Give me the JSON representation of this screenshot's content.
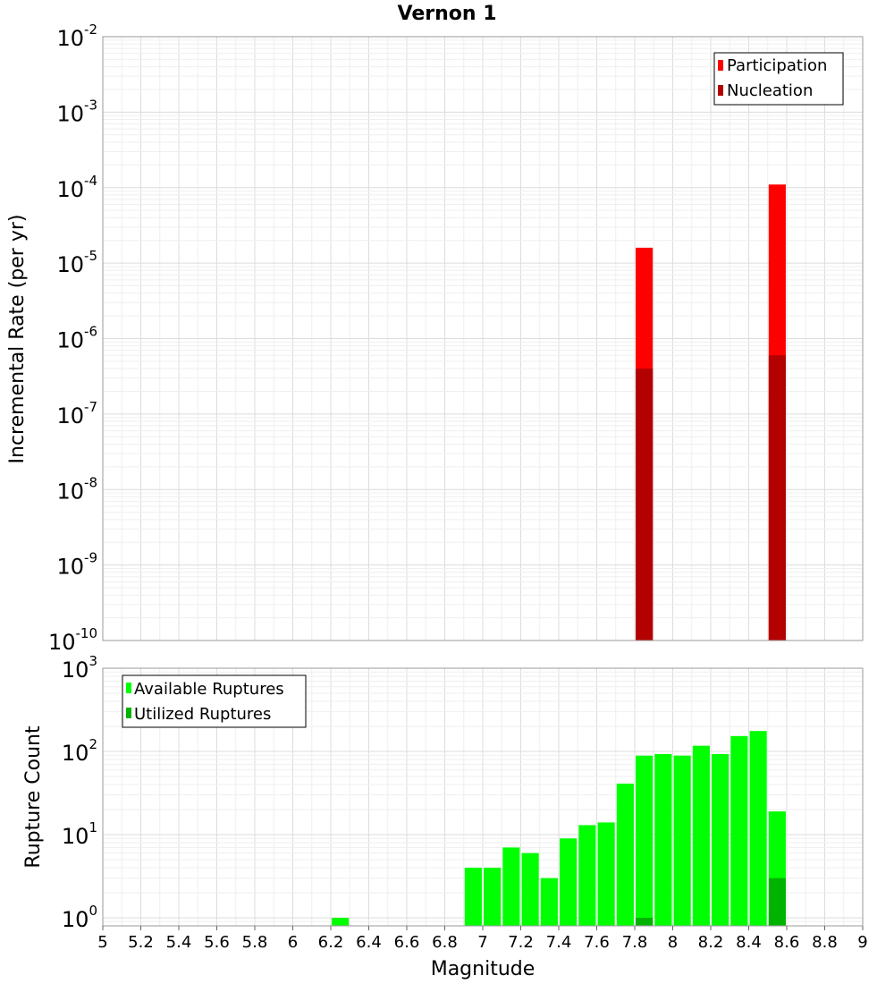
{
  "chart_data": [
    {
      "type": "bar",
      "title": "Vernon 1",
      "ylabel": "Incremental Rate (per yr)",
      "xlabel": "",
      "xlim": [
        5,
        9
      ],
      "ylim": [
        1e-10,
        0.01
      ],
      "yscale": "log",
      "y_tick_exponents": [
        "-2",
        "-3",
        "-4",
        "-5",
        "-6",
        "-7",
        "-8",
        "-9",
        "-10"
      ],
      "grid": true,
      "legend_position": "top-right",
      "series": [
        {
          "name": "Participation",
          "color": "#ff0000",
          "x": [
            7.85,
            8.55
          ],
          "values": [
            1.6e-05,
            0.00011
          ]
        },
        {
          "name": "Nucleation",
          "color": "#b30000",
          "x": [
            7.85,
            8.55
          ],
          "values": [
            4e-07,
            6e-07
          ]
        }
      ]
    },
    {
      "type": "bar",
      "title": "",
      "ylabel": "Rupture Count",
      "xlabel": "Magnitude",
      "xlim": [
        5,
        9
      ],
      "ylim": [
        0.8,
        1000
      ],
      "yscale": "log",
      "y_tick_exponents": [
        "3",
        "2",
        "1",
        "0"
      ],
      "x_ticks": [
        "5",
        "5.2",
        "5.4",
        "5.6",
        "5.8",
        "6",
        "6.2",
        "6.4",
        "6.6",
        "6.8",
        "7",
        "7.2",
        "7.4",
        "7.6",
        "7.8",
        "8",
        "8.2",
        "8.4",
        "8.6",
        "8.8",
        "9"
      ],
      "grid": true,
      "legend_position": "top-left",
      "series": [
        {
          "name": "Available Ruptures",
          "color": "#00ff00",
          "x": [
            6.25,
            6.95,
            7.05,
            7.15,
            7.25,
            7.35,
            7.45,
            7.55,
            7.65,
            7.75,
            7.85,
            7.95,
            8.05,
            8.15,
            8.25,
            8.35,
            8.45,
            8.55
          ],
          "values": [
            1,
            4,
            4,
            7,
            6,
            3,
            9,
            13,
            14,
            41,
            89,
            93,
            89,
            117,
            93,
            153,
            176,
            19
          ]
        },
        {
          "name": "Utilized Ruptures",
          "color": "#00b300",
          "x": [
            7.85,
            8.55
          ],
          "values": [
            1,
            3
          ]
        }
      ]
    }
  ]
}
